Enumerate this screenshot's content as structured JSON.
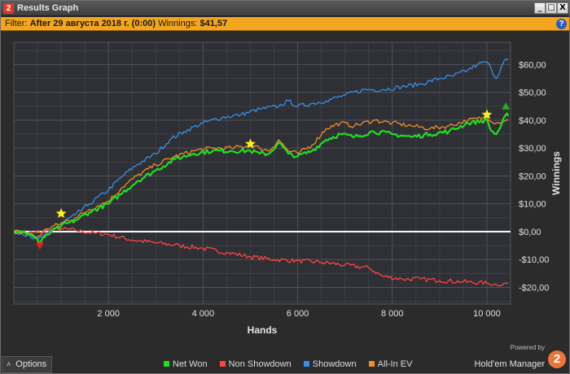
{
  "window": {
    "app_icon_label": "2",
    "title": "Results Graph",
    "buttons": {
      "minimize": "_",
      "maximize": "□",
      "close": "X"
    }
  },
  "filter": {
    "prefix": "Filter:",
    "value": "After 29 августа 2018 г. (0:00)",
    "winnings_label": "Winnings:",
    "winnings_value": "$41,57",
    "help_label": "?"
  },
  "options": {
    "caret": "˄",
    "label": "Options"
  },
  "legend": [
    {
      "label": "Net Won",
      "color": "#22dd22"
    },
    {
      "label": "Non Showdown",
      "color": "#ff4444"
    },
    {
      "label": "Showdown",
      "color": "#3a8ee6"
    },
    {
      "label": "All-In EV",
      "color": "#f28c28"
    }
  ],
  "brand": {
    "powered": "Powered by",
    "name": "Hold'em Manager",
    "logo_label": "2"
  },
  "chart_data": {
    "type": "line",
    "xlabel": "Hands",
    "ylabel": "Winnings",
    "xlim": [
      0,
      10500
    ],
    "ylim": [
      -26,
      68
    ],
    "x_ticks": [
      2000,
      4000,
      6000,
      8000,
      10000
    ],
    "x_tick_labels": [
      "2 000",
      "4 000",
      "6 000",
      "8 000",
      "10 000"
    ],
    "y_ticks": [
      60,
      50,
      40,
      30,
      20,
      10,
      0,
      -10,
      -20
    ],
    "y_tick_labels": [
      "$60,00",
      "$50,00",
      "$40,00",
      "$30,00",
      "$20,00",
      "$10,00",
      "$0,00",
      "-$10,00",
      "-$20,00"
    ],
    "grid": true,
    "legend_position": "bottom",
    "zero_line": true,
    "series": [
      {
        "name": "Non Showdown",
        "color": "#ff4444",
        "points": [
          [
            0,
            0
          ],
          [
            300,
            -0.5
          ],
          [
            600,
            0
          ],
          [
            1000,
            1
          ],
          [
            1300,
            0.5
          ],
          [
            1700,
            -0.5
          ],
          [
            2000,
            -1
          ],
          [
            2500,
            -3
          ],
          [
            3000,
            -4
          ],
          [
            3500,
            -5
          ],
          [
            4000,
            -6
          ],
          [
            4500,
            -7.5
          ],
          [
            5000,
            -9
          ],
          [
            5500,
            -10
          ],
          [
            6000,
            -10.5
          ],
          [
            6500,
            -11
          ],
          [
            7000,
            -12
          ],
          [
            7500,
            -13
          ],
          [
            7800,
            -16
          ],
          [
            8200,
            -17
          ],
          [
            8600,
            -17
          ],
          [
            9000,
            -17.5
          ],
          [
            9500,
            -18
          ],
          [
            10000,
            -18.5
          ],
          [
            10200,
            -19
          ],
          [
            10450,
            -18.5
          ]
        ]
      },
      {
        "name": "Showdown",
        "color": "#3a8ee6",
        "points": [
          [
            0,
            0
          ],
          [
            300,
            -1
          ],
          [
            500,
            -3
          ],
          [
            700,
            -1
          ],
          [
            1000,
            3
          ],
          [
            1300,
            6
          ],
          [
            1600,
            10
          ],
          [
            2000,
            15
          ],
          [
            2300,
            20
          ],
          [
            2600,
            24
          ],
          [
            3000,
            28
          ],
          [
            3300,
            33
          ],
          [
            3600,
            36
          ],
          [
            4000,
            39
          ],
          [
            4400,
            41
          ],
          [
            4800,
            42
          ],
          [
            5200,
            44
          ],
          [
            5600,
            45
          ],
          [
            5800,
            47
          ],
          [
            6000,
            45
          ],
          [
            6300,
            46
          ],
          [
            6600,
            47
          ],
          [
            7000,
            49
          ],
          [
            7400,
            51
          ],
          [
            7800,
            51
          ],
          [
            8200,
            52
          ],
          [
            8600,
            53
          ],
          [
            9000,
            55
          ],
          [
            9300,
            56
          ],
          [
            9600,
            58
          ],
          [
            9800,
            60
          ],
          [
            10000,
            61
          ],
          [
            10100,
            58
          ],
          [
            10200,
            55
          ],
          [
            10300,
            59
          ],
          [
            10400,
            62
          ],
          [
            10450,
            61.5
          ]
        ]
      },
      {
        "name": "All-In EV",
        "color": "#f28c28",
        "points": [
          [
            0,
            0
          ],
          [
            300,
            -0.5
          ],
          [
            500,
            -2
          ],
          [
            700,
            1
          ],
          [
            1000,
            3
          ],
          [
            1300,
            5
          ],
          [
            1600,
            8
          ],
          [
            2000,
            11
          ],
          [
            2300,
            16
          ],
          [
            2600,
            20
          ],
          [
            3000,
            24
          ],
          [
            3400,
            27
          ],
          [
            3800,
            29
          ],
          [
            4200,
            30
          ],
          [
            4600,
            30
          ],
          [
            5000,
            31
          ],
          [
            5200,
            30
          ],
          [
            5400,
            29
          ],
          [
            5600,
            33
          ],
          [
            5800,
            29
          ],
          [
            6000,
            28
          ],
          [
            6300,
            31
          ],
          [
            6600,
            37
          ],
          [
            6900,
            39
          ],
          [
            7200,
            38
          ],
          [
            7600,
            40
          ],
          [
            8000,
            39
          ],
          [
            8400,
            38
          ],
          [
            8800,
            37
          ],
          [
            9200,
            38
          ],
          [
            9600,
            40
          ],
          [
            10000,
            41
          ],
          [
            10200,
            39
          ],
          [
            10400,
            40
          ],
          [
            10450,
            40
          ]
        ]
      },
      {
        "name": "Net Won",
        "color": "#22dd22",
        "points": [
          [
            0,
            0
          ],
          [
            300,
            -0.5
          ],
          [
            450,
            -2
          ],
          [
            550,
            -4
          ],
          [
            650,
            -2
          ],
          [
            800,
            0
          ],
          [
            1000,
            2
          ],
          [
            1300,
            4
          ],
          [
            1600,
            7
          ],
          [
            2000,
            10
          ],
          [
            2300,
            14
          ],
          [
            2600,
            18
          ],
          [
            3000,
            22
          ],
          [
            3400,
            26
          ],
          [
            3800,
            28
          ],
          [
            4200,
            29
          ],
          [
            4600,
            29
          ],
          [
            5000,
            29
          ],
          [
            5200,
            28
          ],
          [
            5400,
            28
          ],
          [
            5600,
            32
          ],
          [
            5800,
            28
          ],
          [
            6000,
            27
          ],
          [
            6300,
            29
          ],
          [
            6600,
            33
          ],
          [
            6900,
            35
          ],
          [
            7200,
            34
          ],
          [
            7600,
            36
          ],
          [
            8000,
            35
          ],
          [
            8400,
            34
          ],
          [
            8800,
            35
          ],
          [
            9200,
            36
          ],
          [
            9600,
            39
          ],
          [
            10000,
            40
          ],
          [
            10100,
            36
          ],
          [
            10200,
            35
          ],
          [
            10300,
            38
          ],
          [
            10400,
            42
          ],
          [
            10450,
            41.5
          ]
        ]
      }
    ],
    "markers": [
      {
        "type": "star",
        "x": 1000,
        "y": 6.5,
        "color": "#ffee33"
      },
      {
        "type": "star",
        "x": 5000,
        "y": 31.5,
        "color": "#ffee33"
      },
      {
        "type": "star",
        "x": 10000,
        "y": 42,
        "color": "#ffee33"
      },
      {
        "type": "triangle-down",
        "x": 550,
        "y": -5,
        "color": "#e02020"
      },
      {
        "type": "triangle-up",
        "x": 10400,
        "y": 45,
        "color": "#22aa22"
      }
    ]
  }
}
